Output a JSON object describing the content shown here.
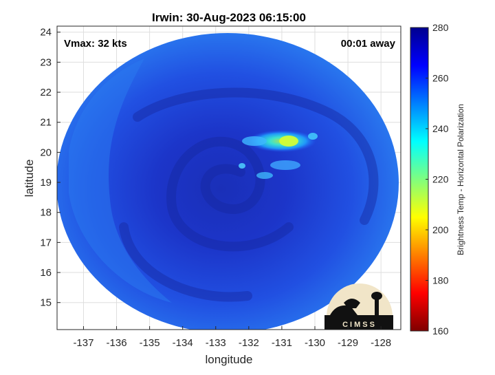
{
  "title": "Irwin: 30-Aug-2023 06:15:00",
  "annotations": {
    "vmax": "Vmax: 32 kts",
    "time_away": "00:01 away"
  },
  "axes": {
    "xlabel": "longitude",
    "ylabel": "latitude",
    "xlim": [
      -137.8,
      -127.4
    ],
    "ylim": [
      14.1,
      24.2
    ],
    "xticks": [
      "-137",
      "-136",
      "-135",
      "-134",
      "-133",
      "-132",
      "-131",
      "-130",
      "-129",
      "-128"
    ],
    "yticks": [
      "15",
      "16",
      "17",
      "18",
      "19",
      "20",
      "21",
      "22",
      "23",
      "24"
    ],
    "grid": true
  },
  "colorbar": {
    "label": "Brightness Temp - Horizontal Polarization",
    "range": [
      160,
      280
    ],
    "ticks": [
      "160",
      "180",
      "200",
      "220",
      "240",
      "260",
      "280"
    ],
    "colormap": "jet",
    "colors": [
      "#7f0000",
      "#ff0000",
      "#ff7f00",
      "#ffff00",
      "#7fff7f",
      "#00ffff",
      "#007fff",
      "#0000ff",
      "#00008f"
    ]
  },
  "swath": {
    "center_lon": -132.7,
    "center_lat": 19.2,
    "dominant_color": "#1f3ddb",
    "storm_center_lon": -132.4,
    "storm_center_lat": 19.2,
    "convection_lon": -130.8,
    "convection_lat": 20.3
  },
  "logo": {
    "text": "CIMSS"
  }
}
